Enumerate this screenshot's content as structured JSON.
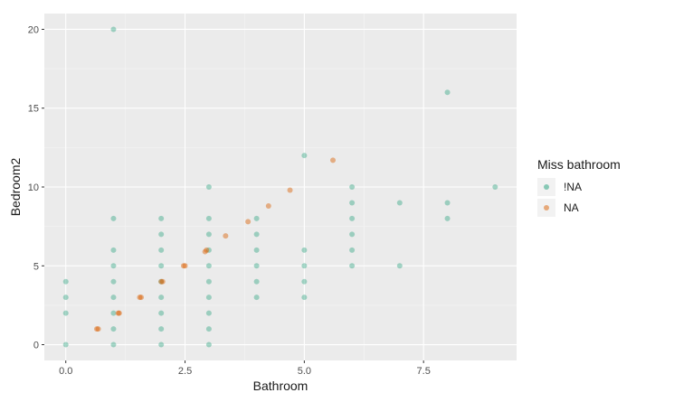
{
  "chart_data": {
    "type": "scatter",
    "xlabel": "Bathroom",
    "ylabel": "Bedroom2",
    "xlim": [
      -0.45,
      9.45
    ],
    "ylim": [
      -1,
      21
    ],
    "x_ticks": [
      0.0,
      2.5,
      5.0,
      7.5
    ],
    "x_tick_labels": [
      "0.0",
      "2.5",
      "5.0",
      "7.5"
    ],
    "y_ticks": [
      0,
      5,
      10,
      15,
      20
    ],
    "y_tick_labels": [
      "0",
      "5",
      "10",
      "15",
      "20"
    ],
    "grid": true,
    "legend": {
      "title": "Miss bathroom",
      "position": "right"
    },
    "series": [
      {
        "name": "!NA",
        "color": "#1b9e77",
        "points": [
          [
            0,
            0
          ],
          [
            0,
            2
          ],
          [
            0,
            3
          ],
          [
            0,
            4
          ],
          [
            1,
            0
          ],
          [
            1,
            1
          ],
          [
            1,
            2
          ],
          [
            1,
            3
          ],
          [
            1,
            4
          ],
          [
            1,
            5
          ],
          [
            1,
            6
          ],
          [
            1,
            8
          ],
          [
            1,
            20
          ],
          [
            2,
            0
          ],
          [
            2,
            1
          ],
          [
            2,
            2
          ],
          [
            2,
            3
          ],
          [
            2,
            4
          ],
          [
            2,
            5
          ],
          [
            2,
            6
          ],
          [
            2,
            7
          ],
          [
            2,
            8
          ],
          [
            3,
            0
          ],
          [
            3,
            1
          ],
          [
            3,
            2
          ],
          [
            3,
            3
          ],
          [
            3,
            4
          ],
          [
            3,
            5
          ],
          [
            3,
            6
          ],
          [
            3,
            7
          ],
          [
            3,
            8
          ],
          [
            3,
            10
          ],
          [
            4,
            3
          ],
          [
            4,
            4
          ],
          [
            4,
            5
          ],
          [
            4,
            6
          ],
          [
            4,
            7
          ],
          [
            4,
            8
          ],
          [
            5,
            3
          ],
          [
            5,
            4
          ],
          [
            5,
            5
          ],
          [
            5,
            6
          ],
          [
            5,
            12
          ],
          [
            6,
            5
          ],
          [
            6,
            6
          ],
          [
            6,
            7
          ],
          [
            6,
            8
          ],
          [
            6,
            9
          ],
          [
            6,
            10
          ],
          [
            7,
            5
          ],
          [
            7,
            9
          ],
          [
            8,
            8
          ],
          [
            8,
            9
          ],
          [
            8,
            16
          ],
          [
            9,
            10
          ]
        ]
      },
      {
        "name": "NA",
        "color": "#d95f02",
        "points": [
          [
            0.65,
            1
          ],
          [
            0.68,
            1
          ],
          [
            1.1,
            2
          ],
          [
            1.12,
            2
          ],
          [
            1.55,
            3
          ],
          [
            1.58,
            3
          ],
          [
            2.0,
            4
          ],
          [
            2.03,
            4
          ],
          [
            2.47,
            5
          ],
          [
            2.5,
            5
          ],
          [
            2.92,
            5.9
          ],
          [
            2.95,
            6
          ],
          [
            3.35,
            6.9
          ],
          [
            3.82,
            7.8
          ],
          [
            4.25,
            8.8
          ],
          [
            4.7,
            9.8
          ],
          [
            5.6,
            11.7
          ]
        ]
      }
    ]
  }
}
